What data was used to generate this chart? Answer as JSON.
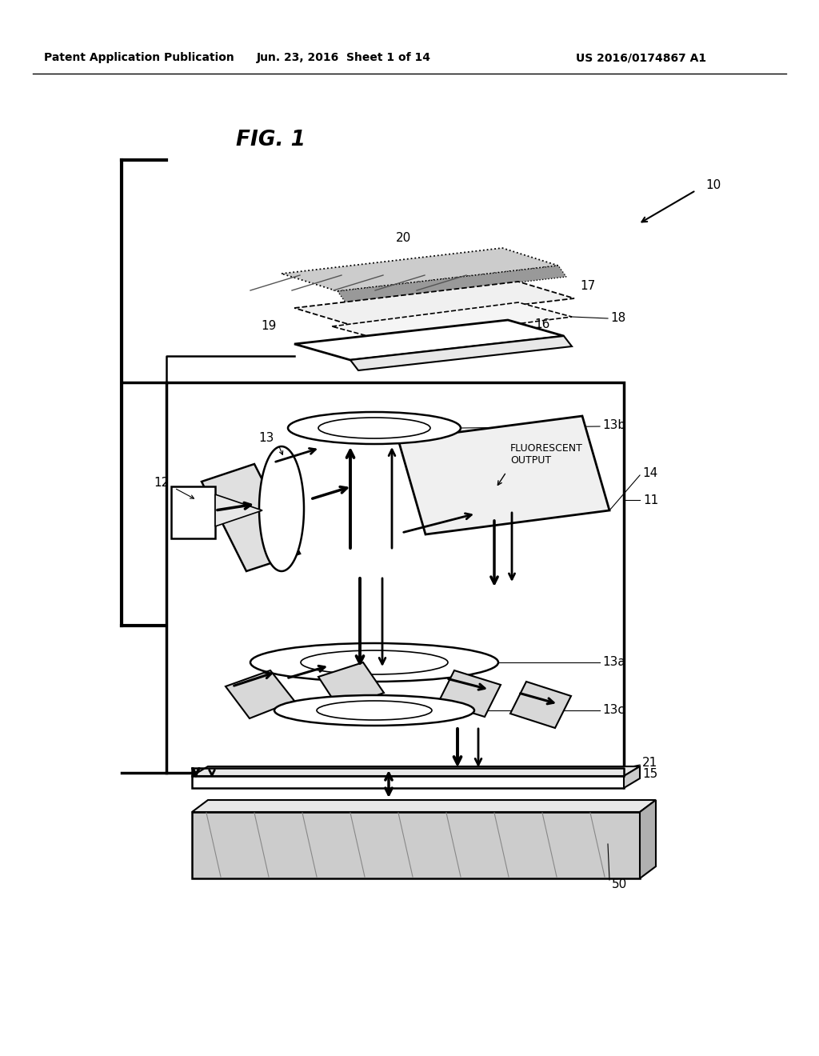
{
  "background": "#ffffff",
  "header_left": "Patent Application Publication",
  "header_mid": "Jun. 23, 2016  Sheet 1 of 14",
  "header_right": "US 2016/0174867 A1",
  "fig_label": "FIG. 1",
  "gray_light": "#e8e8e8",
  "gray_mid": "#cccccc",
  "gray_dark": "#999999"
}
